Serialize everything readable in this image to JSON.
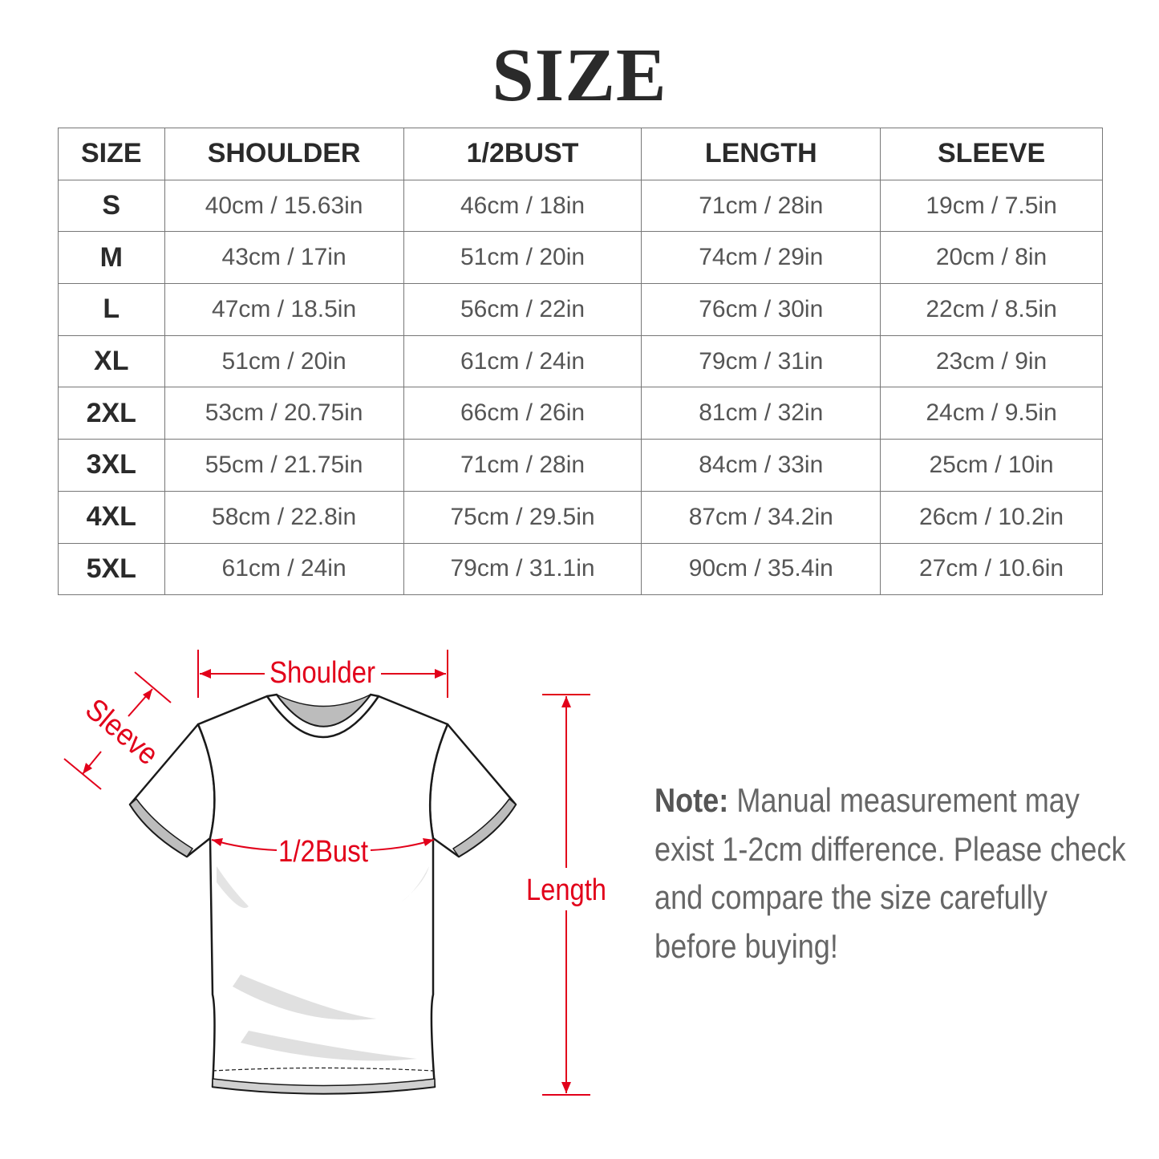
{
  "title": "SIZE",
  "table": {
    "headers": [
      "SIZE",
      "SHOULDER",
      "1/2BUST",
      "LENGTH",
      "SLEEVE"
    ],
    "rows": [
      [
        "S",
        "40cm / 15.63in",
        "46cm / 18in",
        "71cm / 28in",
        "19cm / 7.5in"
      ],
      [
        "M",
        "43cm / 17in",
        "51cm / 20in",
        "74cm / 29in",
        "20cm / 8in"
      ],
      [
        "L",
        "47cm / 18.5in",
        "56cm / 22in",
        "76cm / 30in",
        "22cm / 8.5in"
      ],
      [
        "XL",
        "51cm / 20in",
        "61cm / 24in",
        "79cm / 31in",
        "23cm / 9in"
      ],
      [
        "2XL",
        "53cm / 20.75in",
        "66cm / 26in",
        "81cm / 32in",
        "24cm / 9.5in"
      ],
      [
        "3XL",
        "55cm / 21.75in",
        "71cm / 28in",
        "84cm / 33in",
        "25cm / 10in"
      ],
      [
        "4XL",
        "58cm / 22.8in",
        "75cm / 29.5in",
        "87cm / 34.2in",
        "26cm / 10.2in"
      ],
      [
        "5XL",
        "61cm / 24in",
        "79cm / 31.1in",
        "90cm / 35.4in",
        "27cm / 10.6in"
      ]
    ]
  },
  "diagram": {
    "shoulder_label": "Shoulder",
    "sleeve_label": "Sleeve",
    "bust_label": "1/2Bust",
    "length_label": "Length",
    "accent_color": "#e2001a"
  },
  "note": {
    "label": "Note:",
    "text": " Manual measurement may exist 1-2cm difference. Please check and compare the size carefully before buying!"
  }
}
